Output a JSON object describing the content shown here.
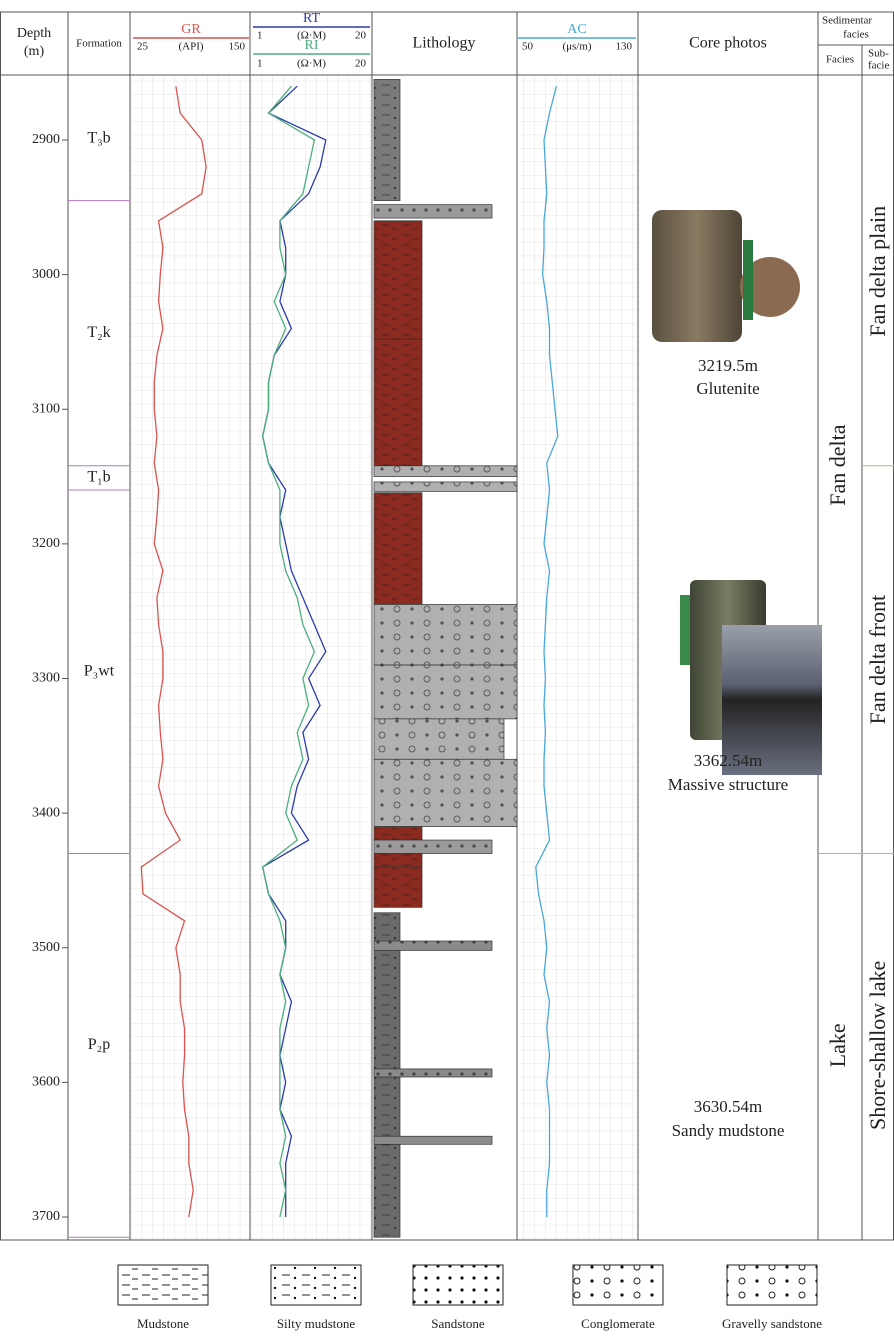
{
  "columns": {
    "depth": [
      "Depth",
      "(m)"
    ],
    "formation": "Formation",
    "lithology": "Lithology",
    "core_photos": "Core photos",
    "sedimentary_facies": [
      "Sedimentar",
      "facies"
    ],
    "facies": "Facies",
    "sub_facies": [
      "Sub-",
      "facie"
    ]
  },
  "depth_ticks": [
    2900,
    3000,
    3100,
    3200,
    3300,
    3400,
    3500,
    3600,
    3700
  ],
  "depths": [
    2860,
    2880,
    2900,
    2920,
    2940,
    2960,
    2980,
    3000,
    3020,
    3040,
    3060,
    3080,
    3100,
    3120,
    3140,
    3160,
    3180,
    3200,
    3220,
    3240,
    3260,
    3280,
    3300,
    3320,
    3340,
    3360,
    3380,
    3400,
    3420,
    3440,
    3460,
    3480,
    3500,
    3520,
    3540,
    3560,
    3580,
    3600,
    3620,
    3640,
    3660,
    3680,
    3700
  ],
  "logs": [
    {
      "name": "GR",
      "unit": "(API)",
      "lim": [
        25,
        150
      ],
      "color": "#d9534f",
      "values": [
        70,
        75,
        100,
        105,
        100,
        50,
        55,
        52,
        50,
        55,
        48,
        45,
        45,
        48,
        45,
        50,
        48,
        45,
        55,
        48,
        50,
        55,
        55,
        50,
        52,
        55,
        50,
        58,
        75,
        30,
        32,
        80,
        70,
        75,
        75,
        80,
        80,
        78,
        80,
        85,
        85,
        90,
        85
      ]
    },
    {
      "name": "RT",
      "unit": "(Ω·M)",
      "lim": [
        1,
        20
      ],
      "color": "#2a3cae",
      "values": [
        8,
        3,
        13,
        12,
        10,
        5,
        6,
        6,
        5,
        7,
        4,
        3,
        3,
        2,
        3,
        6,
        5,
        6,
        7,
        9,
        11,
        13,
        10,
        12,
        9,
        10,
        8,
        7,
        10,
        2,
        3,
        6,
        6,
        5,
        7,
        6,
        5,
        6,
        5,
        7,
        6,
        6,
        6
      ]
    },
    {
      "name": "RI",
      "unit": "(Ω·M)",
      "lim": [
        1,
        20
      ],
      "color": "#4caf7a",
      "values": [
        7,
        3,
        11,
        10,
        9,
        5,
        5,
        6,
        4,
        6,
        4,
        3,
        3,
        2,
        3,
        5,
        5,
        5,
        6,
        8,
        9,
        11,
        9,
        10,
        8,
        9,
        7,
        6,
        8,
        2,
        3,
        5,
        6,
        5,
        6,
        5,
        5,
        5,
        5,
        6,
        5,
        6,
        5
      ]
    },
    {
      "name": "AC",
      "unit": "(μs/m)",
      "lim": [
        50,
        130
      ],
      "color": "#4aa8d8",
      "values": [
        75,
        70,
        66,
        67,
        68,
        66,
        66,
        65,
        68,
        70,
        70,
        72,
        74,
        76,
        68,
        70,
        68,
        66,
        70,
        68,
        67,
        66,
        67,
        66,
        67,
        66,
        66,
        68,
        70,
        60,
        62,
        66,
        68,
        66,
        70,
        68,
        70,
        68,
        70,
        70,
        70,
        68,
        68
      ]
    }
  ],
  "formations": [
    {
      "label": "T₃b",
      "top": 2853,
      "bottom": 2945
    },
    {
      "label": "T₂k",
      "top": 2945,
      "bottom": 3142
    },
    {
      "label": "T₁b",
      "top": 3142,
      "bottom": 3160
    },
    {
      "label": "P₃wt",
      "top": 3160,
      "bottom": 3430
    },
    {
      "label": "P₂p",
      "top": 3430,
      "bottom": 3715
    }
  ],
  "lithology": [
    {
      "top": 2855,
      "bottom": 2945,
      "lithology": "Silty mudstone",
      "color": "#7a7a7a"
    },
    {
      "top": 2948,
      "bottom": 2958,
      "lithology": "Sandstone",
      "color": "#9a9a9a"
    },
    {
      "top": 2960,
      "bottom": 3048,
      "lithology": "Mudstone",
      "color": "#8b2a1e"
    },
    {
      "top": 3048,
      "bottom": 3142,
      "lithology": "Mudstone",
      "color": "#8b2a1e"
    },
    {
      "top": 3142,
      "bottom": 3150,
      "lithology": "Conglomerate",
      "color": "#b0b0b0"
    },
    {
      "top": 3154,
      "bottom": 3161,
      "lithology": "Conglomerate",
      "color": "#b0b0b0"
    },
    {
      "top": 3162,
      "bottom": 3245,
      "lithology": "Mudstone",
      "color": "#8b2a1e"
    },
    {
      "top": 3245,
      "bottom": 3290,
      "lithology": "Conglomerate",
      "color": "#b0b0b0"
    },
    {
      "top": 3290,
      "bottom": 3330,
      "lithology": "Conglomerate",
      "color": "#b0b0b0"
    },
    {
      "top": 3330,
      "bottom": 3360,
      "lithology": "Gravelly sandstone",
      "color": "#b0b0b0"
    },
    {
      "top": 3360,
      "bottom": 3410,
      "lithology": "Conglomerate",
      "color": "#b0b0b0"
    },
    {
      "top": 3410,
      "bottom": 3420,
      "lithology": "Mudstone",
      "color": "#8b2a1e"
    },
    {
      "top": 3420,
      "bottom": 3430,
      "lithology": "Sandstone",
      "color": "#9a9a9a"
    },
    {
      "top": 3430,
      "bottom": 3440,
      "lithology": "Mudstone",
      "color": "#8b2a1e"
    },
    {
      "top": 3440,
      "bottom": 3470,
      "lithology": "Mudstone",
      "color": "#8b2a1e"
    },
    {
      "top": 3474,
      "bottom": 3715,
      "lithology": "Silty mudstone",
      "color": "#6a6a6a"
    },
    {
      "top": 3495,
      "bottom": 3502,
      "lithology": "Sandstone",
      "color": "#8a8a8a"
    },
    {
      "top": 3590,
      "bottom": 3596,
      "lithology": "Sandstone",
      "color": "#8a8a8a"
    },
    {
      "top": 3640,
      "bottom": 3646,
      "lithology": "Sandstone",
      "color": "#8a8a8a"
    }
  ],
  "cores": [
    {
      "depth": "3219.5m",
      "description": "Glutenite"
    },
    {
      "depth": "3362.54m",
      "description": "Massive structure"
    },
    {
      "depth": "3630.54m",
      "description": "Sandy mudstone"
    }
  ],
  "facies": [
    {
      "label": "Fan delta",
      "top": 2853,
      "bottom": 3430
    },
    {
      "label": "Lake",
      "top": 3430,
      "bottom": 3715
    }
  ],
  "sub_facies": [
    {
      "label": "Fan delta plain",
      "top": 2853,
      "bottom": 3142
    },
    {
      "label": "Fan delta front",
      "top": 3142,
      "bottom": 3430
    },
    {
      "label": "Shore-shallow lake",
      "top": 3430,
      "bottom": 3715
    }
  ],
  "legend": [
    "Mudstone",
    "Silty mudstone",
    "Sandstone",
    "Conglomerate",
    "Gravelly sandstone"
  ]
}
